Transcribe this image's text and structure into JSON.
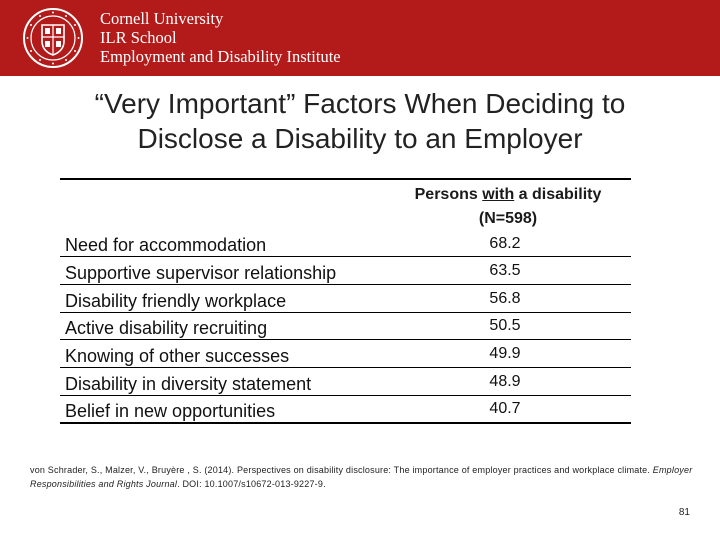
{
  "header": {
    "institution_line1": "Cornell University",
    "institution_line2": "ILR School",
    "institution_line3": "Employment and Disability Institute",
    "banner_color": "#b31b1b",
    "logo": "cornell-seal-icon"
  },
  "slide": {
    "title_line1": "“Very Important” Factors When Deciding to",
    "title_line2": "Disclose a Disability to an Employer"
  },
  "table": {
    "column_header_pre": "Persons ",
    "column_header_emph": "with",
    "column_header_post": " a disability",
    "column_header_n": "(N=598)",
    "rows": [
      {
        "label": "Need for accommodation",
        "value": "68.2"
      },
      {
        "label": "Supportive supervisor relationship",
        "value": "63.5"
      },
      {
        "label": "Disability friendly workplace",
        "value": "56.8"
      },
      {
        "label": "Active disability recruiting",
        "value": "50.5"
      },
      {
        "label": "Knowing of other successes",
        "value": "49.9"
      },
      {
        "label": "Disability in diversity statement",
        "value": "48.9"
      },
      {
        "label": "Belief in new opportunities",
        "value": "40.7"
      }
    ]
  },
  "citation": {
    "part1": "von Schrader, S., Malzer, V., Bruyère , S. (2014).  Perspectives on disability disclosure: The importance of employer practices and workplace climate.  ",
    "journal": "Employer Responsibilities and Rights Journal",
    "part2": ".  DOI: 10.1007/s10672-013-9227-9."
  },
  "page_number": "81"
}
